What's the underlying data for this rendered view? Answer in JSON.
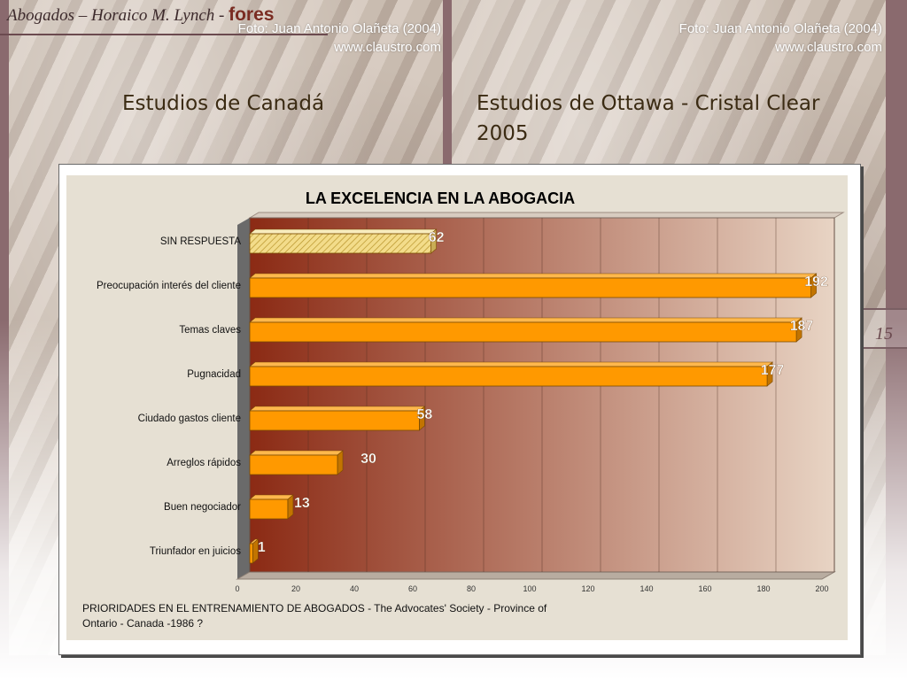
{
  "header": {
    "brand_text": "Abogados – Horaico M. Lynch - ",
    "brand_strong": "fores"
  },
  "photos": {
    "left_credit_line1": "Foto: Juan Antonio Olañeta (2004)",
    "left_credit_line2": "www.claustro.com",
    "right_credit_line1": "Foto: Juan Antonio Olañeta (2004)",
    "right_credit_line2": "www.claustro.com"
  },
  "headings": {
    "left": "Estudios de Canadá",
    "right": "Estudios de Ottawa - Cristal Clear 2005"
  },
  "page_number": "15",
  "chart_data": {
    "type": "bar",
    "orientation": "horizontal",
    "title": "LA EXCELENCIA EN LA ABOGACIA",
    "categories": [
      "SIN RESPUESTA",
      "Preocupación interés del cliente",
      "Temas claves",
      "Pugnacidad",
      "Ciudado gastos cliente",
      "Arreglos rápidos",
      "Buen negociador",
      "Triunfador en juicios"
    ],
    "values": [
      62,
      192,
      187,
      177,
      58,
      30,
      13,
      1
    ],
    "data_labels": [
      "62",
      "192",
      "187",
      "177",
      "58",
      "30",
      "13",
      "1"
    ],
    "xlim": [
      0,
      200
    ],
    "x_ticks": [
      "0",
      "20",
      "40",
      "60",
      "80",
      "100",
      "120",
      "140",
      "160",
      "180",
      "200"
    ],
    "source_note": "PRIORIDADES EN EL ENTRENAMIENTO DE ABOGADOS - The Advocates' Society - Province of Ontario -  Canada -1986 ?",
    "colors": {
      "bar": "#ff9900",
      "bar_side": "#c27400",
      "highlight_bar": "#f3dc8a",
      "label": "#ffffff",
      "plot_dark": "#8b2a14",
      "plot_light": "#e8d4c4"
    }
  }
}
